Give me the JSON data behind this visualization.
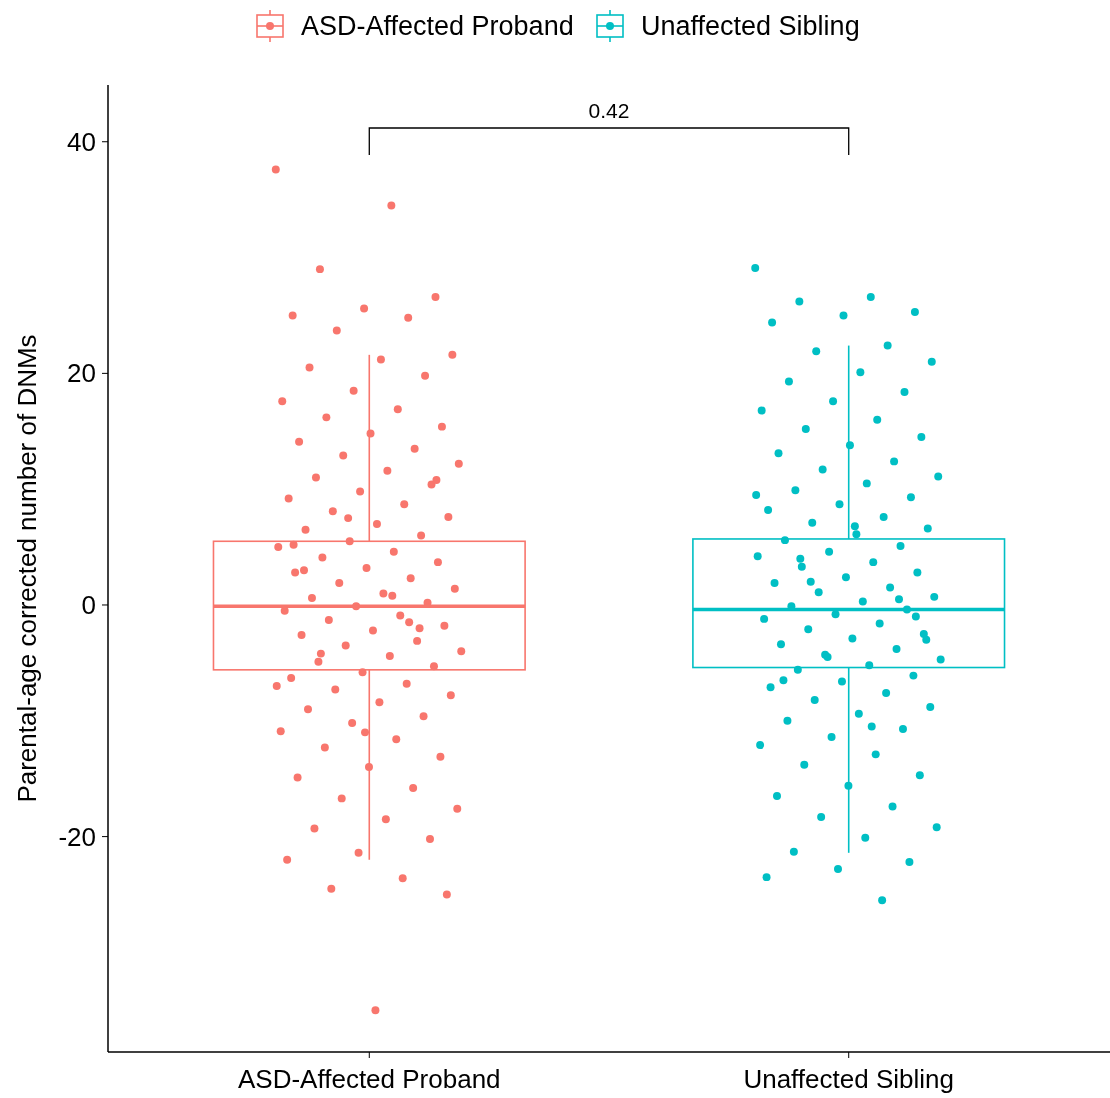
{
  "chart_data": {
    "type": "box",
    "ylabel": "Parental-age corrected number of DNMs",
    "categories": [
      "ASD-Affected Proband",
      "Unaffected Sibling"
    ],
    "ylim": [
      -38.6,
      44.9
    ],
    "yticks": [
      -20,
      0,
      20,
      40
    ],
    "legend": "top",
    "marker": "circle",
    "annotations": [
      "0.42"
    ],
    "series": [
      {
        "name": "ASD-Affected Proband",
        "color": "#f8766d",
        "boxes": [
          {
            "low": -22.0,
            "q1": -5.6,
            "median": -0.1,
            "q3": 5.5,
            "high": 21.6
          },
          null
        ]
      },
      {
        "name": "Unaffected Sibling",
        "color": "#00bfc4",
        "boxes": [
          null,
          {
            "low": -21.4,
            "q1": -5.4,
            "median": -0.4,
            "q3": 5.7,
            "high": 22.4
          }
        ]
      },
      {
        "type": "scatter",
        "color": "#f8766d",
        "x": [
          "ASD-Affected Proband",
          "ASD-Affected Proband",
          "ASD-Affected Proband",
          "ASD-Affected Proband",
          "ASD-Affected Proband",
          "ASD-Affected Proband",
          "ASD-Affected Proband",
          "ASD-Affected Proband",
          "ASD-Affected Proband",
          "ASD-Affected Proband",
          "ASD-Affected Proband",
          "ASD-Affected Proband",
          "ASD-Affected Proband",
          "ASD-Affected Proband",
          "ASD-Affected Proband",
          "ASD-Affected Proband",
          "ASD-Affected Proband",
          "ASD-Affected Proband",
          "ASD-Affected Proband",
          "ASD-Affected Proband",
          "ASD-Affected Proband",
          "ASD-Affected Proband",
          "ASD-Affected Proband",
          "ASD-Affected Proband",
          "ASD-Affected Proband",
          "ASD-Affected Proband",
          "ASD-Affected Proband",
          "ASD-Affected Proband",
          "ASD-Affected Proband",
          "ASD-Affected Proband",
          "ASD-Affected Proband",
          "ASD-Affected Proband",
          "ASD-Affected Proband",
          "ASD-Affected Proband",
          "ASD-Affected Proband",
          "ASD-Affected Proband",
          "ASD-Affected Proband",
          "ASD-Affected Proband",
          "ASD-Affected Proband",
          "ASD-Affected Proband",
          "ASD-Affected Proband",
          "ASD-Affected Proband",
          "ASD-Affected Proband",
          "ASD-Affected Proband",
          "ASD-Affected Proband",
          "ASD-Affected Proband",
          "ASD-Affected Proband",
          "ASD-Affected Proband",
          "ASD-Affected Proband",
          "ASD-Affected Proband",
          "ASD-Affected Proband",
          "ASD-Affected Proband",
          "ASD-Affected Proband",
          "ASD-Affected Proband",
          "ASD-Affected Proband",
          "ASD-Affected Proband",
          "ASD-Affected Proband",
          "ASD-Affected Proband",
          "ASD-Affected Proband",
          "ASD-Affected Proband",
          "ASD-Affected Proband",
          "ASD-Affected Proband",
          "ASD-Affected Proband",
          "ASD-Affected Proband",
          "ASD-Affected Proband",
          "ASD-Affected Proband",
          "ASD-Affected Proband",
          "ASD-Affected Proband",
          "ASD-Affected Proband",
          "ASD-Affected Proband",
          "ASD-Affected Proband",
          "ASD-Affected Proband",
          "ASD-Affected Proband",
          "ASD-Affected Proband",
          "ASD-Affected Proband",
          "ASD-Affected Proband",
          "ASD-Affected Proband",
          "ASD-Affected Proband",
          "ASD-Affected Proband",
          "ASD-Affected Proband",
          "ASD-Affected Proband",
          "ASD-Affected Proband",
          "ASD-Affected Proband",
          "ASD-Affected Proband",
          "ASD-Affected Proband",
          "ASD-Affected Proband",
          "ASD-Affected Proband",
          "ASD-Affected Proband",
          "ASD-Affected Proband",
          "ASD-Affected Proband",
          "ASD-Affected Proband",
          "ASD-Affected Proband",
          "ASD-Affected Proband",
          "ASD-Affected Proband",
          "ASD-Affected Proband",
          "ASD-Affected Proband"
        ],
        "values": [
          37.6,
          34.5,
          29.0,
          26.6,
          25.6,
          25.0,
          24.8,
          23.7,
          21.6,
          21.2,
          20.5,
          19.8,
          18.5,
          17.6,
          16.9,
          16.2,
          15.4,
          14.8,
          14.1,
          13.5,
          12.9,
          12.2,
          11.6,
          11.0,
          10.4,
          9.8,
          9.2,
          8.7,
          8.1,
          7.6,
          7.0,
          6.5,
          6.0,
          5.5,
          5.0,
          4.6,
          4.1,
          3.7,
          3.2,
          2.8,
          2.3,
          1.9,
          1.4,
          1.0,
          0.6,
          0.2,
          -0.1,
          -0.5,
          -0.9,
          -1.3,
          -1.8,
          -2.2,
          -2.6,
          -3.1,
          -3.5,
          -4.0,
          -4.4,
          -4.9,
          -5.3,
          -5.8,
          -6.3,
          -6.8,
          -7.3,
          -7.8,
          -8.4,
          -9.0,
          -9.6,
          -10.2,
          -10.9,
          -11.6,
          -12.3,
          -13.1,
          -14.0,
          -14.9,
          -15.8,
          -16.7,
          -17.6,
          -18.5,
          -19.3,
          -20.2,
          -21.4,
          -22.0,
          -23.6,
          -24.5,
          -25.0,
          -35.0,
          3.0,
          -2.0,
          7.5,
          -7.0,
          0.8,
          -4.2,
          10.8,
          -11.0,
          5.2,
          -1.5
        ]
      },
      {
        "type": "scatter",
        "color": "#00bfc4",
        "x": [
          "Unaffected Sibling",
          "Unaffected Sibling",
          "Unaffected Sibling",
          "Unaffected Sibling",
          "Unaffected Sibling",
          "Unaffected Sibling",
          "Unaffected Sibling",
          "Unaffected Sibling",
          "Unaffected Sibling",
          "Unaffected Sibling",
          "Unaffected Sibling",
          "Unaffected Sibling",
          "Unaffected Sibling",
          "Unaffected Sibling",
          "Unaffected Sibling",
          "Unaffected Sibling",
          "Unaffected Sibling",
          "Unaffected Sibling",
          "Unaffected Sibling",
          "Unaffected Sibling",
          "Unaffected Sibling",
          "Unaffected Sibling",
          "Unaffected Sibling",
          "Unaffected Sibling",
          "Unaffected Sibling",
          "Unaffected Sibling",
          "Unaffected Sibling",
          "Unaffected Sibling",
          "Unaffected Sibling",
          "Unaffected Sibling",
          "Unaffected Sibling",
          "Unaffected Sibling",
          "Unaffected Sibling",
          "Unaffected Sibling",
          "Unaffected Sibling",
          "Unaffected Sibling",
          "Unaffected Sibling",
          "Unaffected Sibling",
          "Unaffected Sibling",
          "Unaffected Sibling",
          "Unaffected Sibling",
          "Unaffected Sibling",
          "Unaffected Sibling",
          "Unaffected Sibling",
          "Unaffected Sibling",
          "Unaffected Sibling",
          "Unaffected Sibling",
          "Unaffected Sibling",
          "Unaffected Sibling",
          "Unaffected Sibling",
          "Unaffected Sibling",
          "Unaffected Sibling",
          "Unaffected Sibling",
          "Unaffected Sibling",
          "Unaffected Sibling",
          "Unaffected Sibling",
          "Unaffected Sibling",
          "Unaffected Sibling",
          "Unaffected Sibling",
          "Unaffected Sibling",
          "Unaffected Sibling",
          "Unaffected Sibling",
          "Unaffected Sibling",
          "Unaffected Sibling",
          "Unaffected Sibling",
          "Unaffected Sibling",
          "Unaffected Sibling",
          "Unaffected Sibling",
          "Unaffected Sibling",
          "Unaffected Sibling",
          "Unaffected Sibling",
          "Unaffected Sibling",
          "Unaffected Sibling",
          "Unaffected Sibling",
          "Unaffected Sibling",
          "Unaffected Sibling",
          "Unaffected Sibling",
          "Unaffected Sibling",
          "Unaffected Sibling",
          "Unaffected Sibling",
          "Unaffected Sibling",
          "Unaffected Sibling",
          "Unaffected Sibling",
          "Unaffected Sibling",
          "Unaffected Sibling",
          "Unaffected Sibling",
          "Unaffected Sibling",
          "Unaffected Sibling",
          "Unaffected Sibling",
          "Unaffected Sibling",
          "Unaffected Sibling",
          "Unaffected Sibling",
          "Unaffected Sibling"
        ],
        "values": [
          29.1,
          26.6,
          26.2,
          25.3,
          25.0,
          24.4,
          22.4,
          21.9,
          21.0,
          20.1,
          19.3,
          18.4,
          17.6,
          16.8,
          16.0,
          15.2,
          14.5,
          13.8,
          13.1,
          12.4,
          11.7,
          11.1,
          10.5,
          9.9,
          9.3,
          8.7,
          8.2,
          7.6,
          7.1,
          6.6,
          6.1,
          5.6,
          5.1,
          4.6,
          4.2,
          3.7,
          3.3,
          2.8,
          2.4,
          1.9,
          1.5,
          1.1,
          0.7,
          0.3,
          -0.1,
          -0.4,
          -0.8,
          -1.2,
          -1.6,
          -2.1,
          -2.5,
          -2.9,
          -3.4,
          -3.8,
          -4.3,
          -4.7,
          -5.2,
          -5.6,
          -6.1,
          -6.6,
          -7.1,
          -7.6,
          -8.2,
          -8.8,
          -9.4,
          -10.0,
          -10.7,
          -11.4,
          -12.1,
          -12.9,
          -13.8,
          -14.7,
          -15.6,
          -16.5,
          -17.4,
          -18.3,
          -19.2,
          -20.1,
          -21.3,
          -22.2,
          -22.8,
          -23.5,
          -25.5,
          2.0,
          -3.0,
          6.8,
          -6.5,
          0.5,
          -4.5,
          9.5,
          -10.5,
          4.0,
          -1.0
        ]
      }
    ]
  }
}
